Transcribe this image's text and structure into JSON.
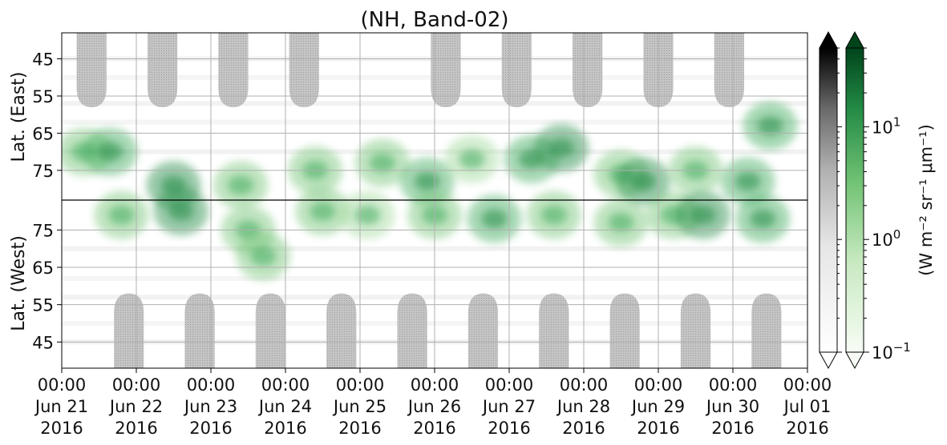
{
  "chart_data": {
    "type": "heatmap",
    "title": "(NH, Band-02)",
    "top_panel_ylabel": "Lat. (East)",
    "bottom_panel_ylabel": "Lat. (West)",
    "top_panel_yticks": [
      "45",
      "55",
      "65",
      "75"
    ],
    "bottom_panel_yticks": [
      "75",
      "65",
      "55",
      "45"
    ],
    "xticks": [
      {
        "time": "00:00",
        "date": "Jun 21",
        "year": "2016"
      },
      {
        "time": "00:00",
        "date": "Jun 22",
        "year": "2016"
      },
      {
        "time": "00:00",
        "date": "Jun 23",
        "year": "2016"
      },
      {
        "time": "00:00",
        "date": "Jun 24",
        "year": "2016"
      },
      {
        "time": "00:00",
        "date": "Jun 25",
        "year": "2016"
      },
      {
        "time": "00:00",
        "date": "Jun 26",
        "year": "2016"
      },
      {
        "time": "00:00",
        "date": "Jun 27",
        "year": "2016"
      },
      {
        "time": "00:00",
        "date": "Jun 28",
        "year": "2016"
      },
      {
        "time": "00:00",
        "date": "Jun 29",
        "year": "2016"
      },
      {
        "time": "00:00",
        "date": "Jun 30",
        "year": "2016"
      },
      {
        "time": "00:00",
        "date": "Jul 01",
        "year": "2016"
      }
    ],
    "xlim": [
      "2016-06-21 00:00",
      "2016-07-01 00:00"
    ],
    "top_panel_lat_range": [
      38,
      83
    ],
    "bottom_panel_lat_range": [
      83,
      38
    ],
    "grid": true,
    "colorbar": {
      "scale": "log",
      "range": [
        0.1,
        50
      ],
      "ticks": [
        {
          "base": "10",
          "exp": "1"
        },
        {
          "base": "10",
          "exp": "0"
        },
        {
          "base": "10",
          "exp": "−1"
        }
      ],
      "label": "(W m⁻² sr⁻¹ μm⁻¹)",
      "extend": "both",
      "colormaps": [
        "Greys",
        "Greens"
      ]
    },
    "colors": {
      "green_dark": "#00441b",
      "green_mid": "#41ab5d",
      "green_light": "#c7e9c0",
      "grey_dark": "#000000",
      "grey_mid": "#bdbdbd",
      "grey_light": "#f5f5f5"
    },
    "green_activity_top": [
      {
        "day": 0.3,
        "lat": 70,
        "value": 3
      },
      {
        "day": 0.65,
        "lat": 70,
        "value": 5
      },
      {
        "day": 1.5,
        "lat": 79,
        "value": 6
      },
      {
        "day": 2.4,
        "lat": 79,
        "value": 3
      },
      {
        "day": 3.4,
        "lat": 75,
        "value": 3
      },
      {
        "day": 4.3,
        "lat": 73,
        "value": 3
      },
      {
        "day": 4.9,
        "lat": 78,
        "value": 5
      },
      {
        "day": 5.5,
        "lat": 72,
        "value": 2
      },
      {
        "day": 6.3,
        "lat": 72,
        "value": 4
      },
      {
        "day": 6.7,
        "lat": 69,
        "value": 6
      },
      {
        "day": 7.5,
        "lat": 76,
        "value": 3
      },
      {
        "day": 7.8,
        "lat": 78,
        "value": 7
      },
      {
        "day": 8.5,
        "lat": 75,
        "value": 3
      },
      {
        "day": 9.2,
        "lat": 78,
        "value": 4
      },
      {
        "day": 9.5,
        "lat": 63,
        "value": 4
      }
    ],
    "green_activity_bottom": [
      {
        "day": 0.8,
        "lat": 79,
        "value": 3
      },
      {
        "day": 1.6,
        "lat": 80,
        "value": 7
      },
      {
        "day": 2.5,
        "lat": 75,
        "value": 3
      },
      {
        "day": 2.7,
        "lat": 68,
        "value": 3
      },
      {
        "day": 3.5,
        "lat": 80,
        "value": 3
      },
      {
        "day": 4.1,
        "lat": 79,
        "value": 2
      },
      {
        "day": 5.0,
        "lat": 79,
        "value": 3
      },
      {
        "day": 5.8,
        "lat": 78,
        "value": 4
      },
      {
        "day": 6.6,
        "lat": 79,
        "value": 3
      },
      {
        "day": 7.5,
        "lat": 77,
        "value": 3
      },
      {
        "day": 8.2,
        "lat": 79,
        "value": 3
      },
      {
        "day": 8.6,
        "lat": 79,
        "value": 7
      },
      {
        "day": 9.4,
        "lat": 78,
        "value": 5
      }
    ],
    "grey_no_data_top": [
      0.4,
      1.35,
      2.3,
      3.25,
      5.15,
      6.1,
      7.05,
      8.0,
      8.95
    ],
    "grey_no_data_bottom": [
      0.9,
      1.85,
      2.8,
      3.75,
      4.7,
      5.65,
      6.6,
      7.55,
      8.5,
      9.45
    ]
  }
}
